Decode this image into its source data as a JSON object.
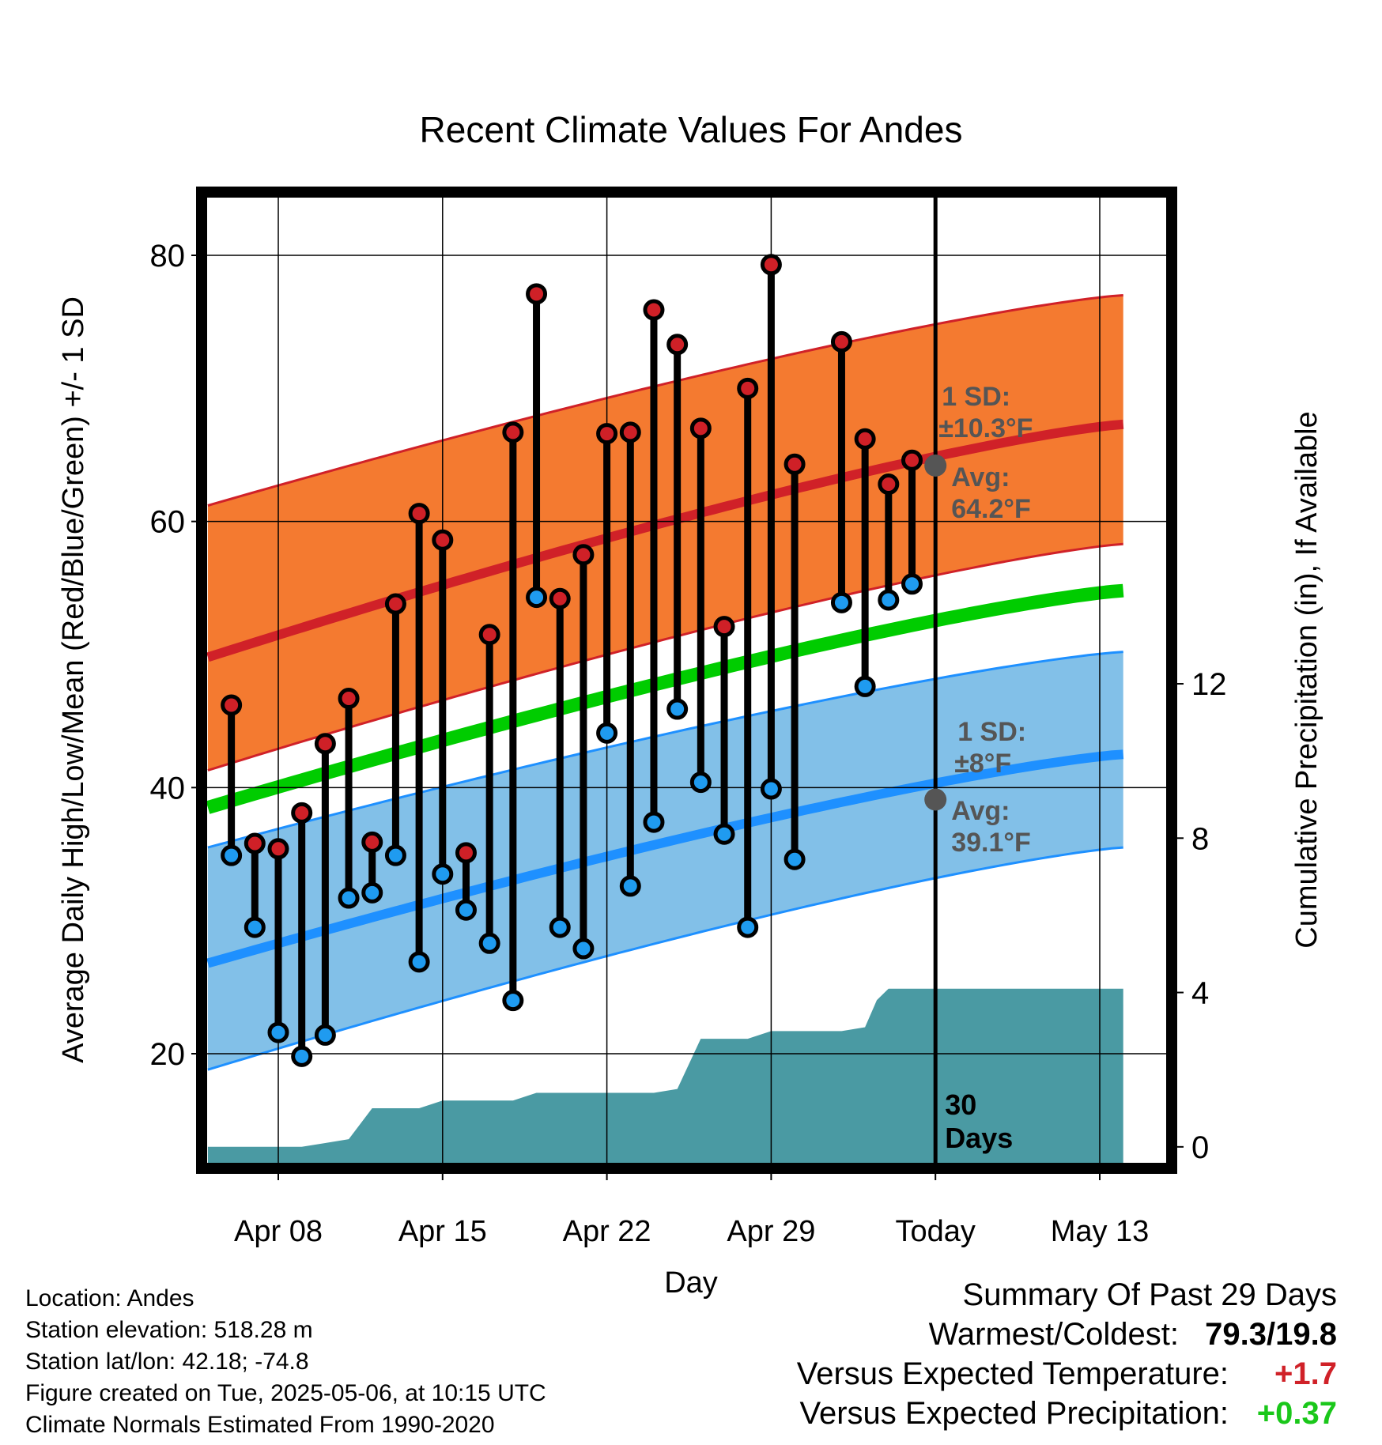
{
  "chart_data": {
    "type": "line",
    "title": "Recent Climate Values For Andes",
    "xlabel": "Day",
    "ylabel": "Average Daily High/Low/Mean (Red/Blue/Green) +/- 1 SD",
    "ylabel_right": "Cumulative Precipitation (in), If Available",
    "x_tick_labels": [
      "Apr 08",
      "Apr 15",
      "Apr 22",
      "Apr 29",
      "Today",
      "May 13"
    ],
    "x_ticks_day": [
      8,
      15,
      22,
      29,
      36,
      43
    ],
    "xlim_day": [
      5,
      44
    ],
    "ylim": [
      13,
      86
    ],
    "y_ticks": [
      20,
      40,
      60,
      80
    ],
    "y_minor_ticks": [
      30,
      50,
      70
    ],
    "y2_ticks": [
      0,
      4,
      8,
      12
    ],
    "y2_ratio_units_per_in": 2.9,
    "today_day": 36,
    "window_label": "30\nDays",
    "normals": {
      "day": [
        5,
        44
      ],
      "high_mean": [
        49.8,
        67.3
      ],
      "high_upper": [
        61.2,
        77.0
      ],
      "high_lower": [
        41.3,
        58.3
      ],
      "low_mean": [
        26.8,
        42.5
      ],
      "low_upper": [
        35.5,
        50.2
      ],
      "low_lower": [
        18.8,
        35.5
      ],
      "mean": [
        38.5,
        54.8
      ]
    },
    "daily": {
      "day": [
        6,
        7,
        8,
        9,
        10,
        11,
        12,
        13,
        14,
        15,
        16,
        17,
        18,
        19,
        20,
        21,
        22,
        23,
        24,
        25,
        26,
        27,
        28,
        29,
        30,
        32,
        33,
        34,
        35
      ],
      "high": [
        46.2,
        35.8,
        35.4,
        38.1,
        43.3,
        46.7,
        35.9,
        53.8,
        60.6,
        58.6,
        35.1,
        51.5,
        66.7,
        77.1,
        54.2,
        57.5,
        66.6,
        66.7,
        75.9,
        73.3,
        67.0,
        52.1,
        70.0,
        79.3,
        64.3,
        73.5,
        66.2,
        62.8,
        64.6
      ],
      "low": [
        34.9,
        29.5,
        21.6,
        19.8,
        21.4,
        31.7,
        32.1,
        34.9,
        26.9,
        33.5,
        30.8,
        28.3,
        24.0,
        54.3,
        29.5,
        27.9,
        44.1,
        32.6,
        37.4,
        45.9,
        40.4,
        36.5,
        29.5,
        39.9,
        34.6,
        53.9,
        47.6,
        54.1,
        55.3
      ]
    },
    "precip": {
      "day": [
        5,
        9,
        10,
        11,
        12,
        14,
        15,
        16,
        18,
        19,
        21,
        23,
        24,
        25,
        26,
        27,
        28,
        29,
        31,
        32,
        33,
        33.5,
        34,
        44
      ],
      "cum_in": [
        0,
        0,
        0.1,
        0.2,
        1.0,
        1.0,
        1.2,
        1.2,
        1.2,
        1.4,
        1.4,
        1.4,
        1.4,
        1.5,
        2.8,
        2.8,
        2.8,
        3.0,
        3.0,
        3.0,
        3.1,
        3.8,
        4.1,
        4.1
      ]
    },
    "annotations": {
      "high": {
        "sd": "1 SD:",
        "sd_value": "±10.3°F",
        "avg": "Avg:",
        "avg_value": "64.2°F",
        "avg_y": 64.2
      },
      "low": {
        "sd": "1 SD:",
        "sd_value": "±8°F",
        "avg": "Avg:",
        "avg_value": "39.1°F",
        "avg_y": 39.1
      }
    },
    "colors": {
      "high_band": "#f47a30",
      "high_line": "#d02128",
      "low_band": "#82c0e8",
      "low_line": "#1e90ff",
      "mean_line": "#00cc00",
      "precip": "#4a9aa3",
      "high_dot": "#cf2027",
      "low_dot": "#1f9bf0",
      "annotation": "#555555"
    },
    "grid": true
  },
  "info": {
    "location": "Location: Andes",
    "elevation": "Station elevation: 518.28 m",
    "latlon": "Station lat/lon: 42.18; -74.8",
    "created": "Figure created on Tue, 2025-05-06, at 10:15 UTC",
    "normals": "Climate Normals Estimated From 1990-2020"
  },
  "summary": {
    "title": "Summary Of Past 29 Days",
    "warmest_label": "Warmest/Coldest:",
    "warmest_value": "79.3/19.8",
    "temp_label": "Versus Expected Temperature:",
    "temp_value": "+1.7",
    "temp_color": "#d02128",
    "precip_label": "Versus Expected Precipitation:",
    "precip_value": "+0.37",
    "precip_color": "#1ac71a"
  }
}
